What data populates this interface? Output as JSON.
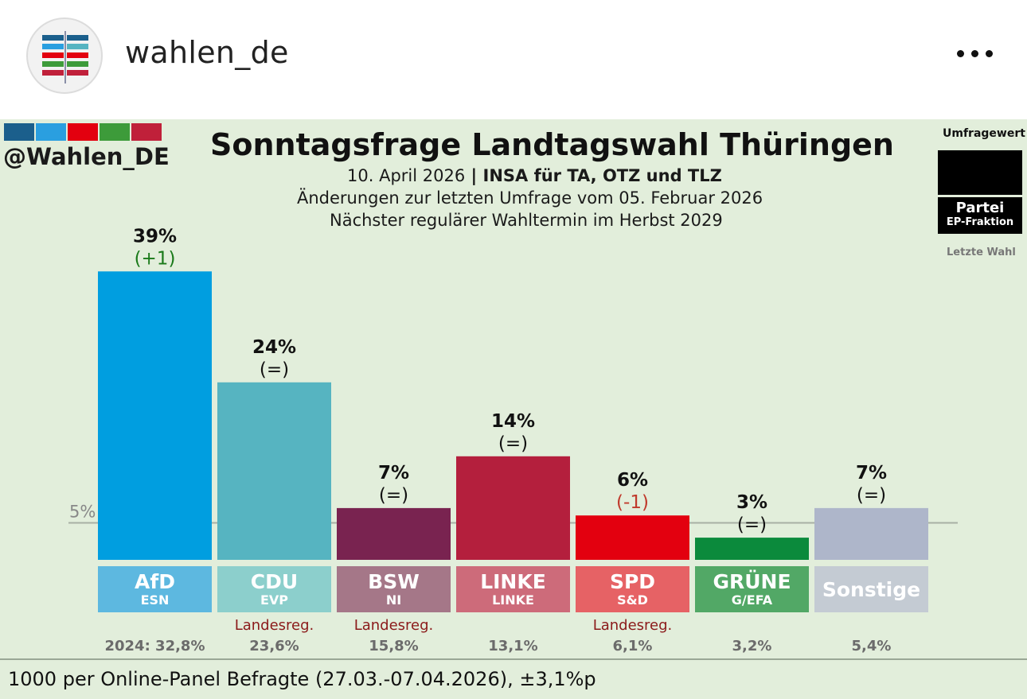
{
  "header": {
    "username": "wahlen_de",
    "avatar_icon": "wahlen-logo-icon",
    "more_icon": "more-options-icon"
  },
  "post": {
    "brand_handle": "@Wahlen_DE",
    "brand_colors": [
      "#1b5f8c",
      "#2a9fe0",
      "#e3000f",
      "#3d9b3a",
      "#c0203a"
    ],
    "title": "Sonntagsfrage Landtagswahl Thüringen",
    "subtitle_date": "10. April 2026",
    "subtitle_sep": " | ",
    "subtitle_source": "INSA für TA, OTZ und TLZ",
    "subtitle_changes": "Änderungen zur letzten Umfrage vom 05. Februar 2026",
    "subtitle_next": "Nächster regulärer Wahltermin im Herbst 2029",
    "legend": {
      "title": "Umfragewert",
      "party": "Partei",
      "fraction": "EP-Fraktion",
      "last": "Letzte Wahl"
    },
    "footnote": "1000 per Online-Panel Befragte (27.03.-07.04.2026), ±3,1%p"
  },
  "chart_data": {
    "type": "bar",
    "title": "Sonntagsfrage Landtagswahl Thüringen",
    "ylim": [
      0,
      42
    ],
    "threshold": {
      "value": 5,
      "label": "5%"
    },
    "categories": [
      "AfD",
      "CDU",
      "BSW",
      "LINKE",
      "SPD",
      "GRÜNE",
      "Sonstige"
    ],
    "values": [
      39,
      24,
      7,
      14,
      6,
      3,
      7
    ],
    "value_labels": [
      "39%",
      "24%",
      "7%",
      "14%",
      "6%",
      "3%",
      "7%"
    ],
    "changes": [
      "(+1)",
      "(=)",
      "(=)",
      "(=)",
      "(-1)",
      "(=)",
      "(=)"
    ],
    "fractions": [
      "ESN",
      "EVP",
      "NI",
      "LINKE",
      "S&D",
      "G/EFA",
      ""
    ],
    "government": [
      "",
      "Landesreg.",
      "Landesreg.",
      "",
      "Landesreg.",
      "",
      ""
    ],
    "last_election": [
      "2024: 32,8%",
      "23,6%",
      "15,8%",
      "13,1%",
      "6,1%",
      "3,2%",
      "5,4%"
    ],
    "bar_colors": [
      "#009ee0",
      "#56b4c1",
      "#792350",
      "#b41f3d",
      "#e3000f",
      "#0b8a3c",
      "#aeb6ca"
    ],
    "label_colors": [
      "#5db8e0",
      "#8ccfcc",
      "#a57788",
      "#cd6b7a",
      "#e66265",
      "#52a866",
      "#c4cbd3"
    ],
    "change_colors": [
      "#1a7a1a",
      "#111111",
      "#111111",
      "#111111",
      "#c0392b",
      "#111111",
      "#111111"
    ],
    "government_color": "#8b1a1a"
  }
}
